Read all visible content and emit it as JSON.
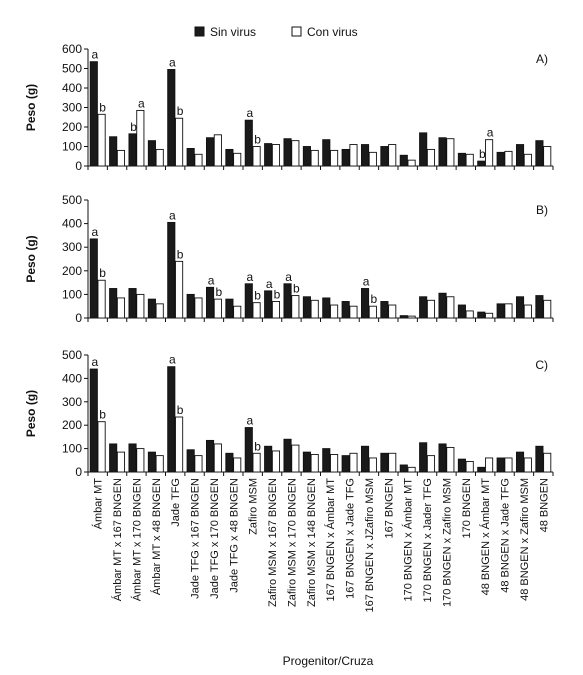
{
  "legend": [
    {
      "label": "Sin virus",
      "color": "#1a1a1a"
    },
    {
      "label": "Con virus",
      "color": "#ffffff"
    }
  ],
  "xlabel": "Progenitor/Cruza",
  "categories": [
    "Ámbar MT",
    "Ámbar MT x 167 BNGEN",
    "Ámbar MT x 170 BNGEN",
    "Ámbar MT x 48 BNGEN",
    "Jade TFG",
    "Jade TFG x 167 BNGEN",
    "Jade TFG x 170 BNGEN",
    "Jade TFG x 48 BNGEN",
    "Zafiro MSM",
    "Zafiro MSM x 167 BNGEN",
    "Zafiro MSM x 170 BNGEN",
    "Zafiro MSM x 148 BNGEN",
    "167 BNGEN x Ámbar MT",
    "167 BNGEN x Jade TFG",
    "167 BNGEN x JZafiro MSM",
    "167 BNGEN",
    "170 BNGEN x Ámbar MT",
    "170 BNGEN x Jader TFG",
    "170 BNGEN x Zafiro MSM",
    "170 BNGEN",
    "48 BNGEN x Ámbar MT",
    "48 BNGEN x Jade TFG",
    "48 BNGEN x Zafiro MSM",
    "48 BNGEN"
  ],
  "chart_data": [
    {
      "type": "bar",
      "panel_label": "A)",
      "ylabel": "Peso (g)",
      "ylim": [
        0,
        600
      ],
      "yticks": [
        0,
        100,
        200,
        300,
        400,
        500,
        600
      ],
      "series": [
        {
          "name": "Sin virus",
          "values": [
            535,
            150,
            165,
            130,
            495,
            90,
            145,
            85,
            235,
            115,
            140,
            100,
            135,
            85,
            110,
            100,
            55,
            170,
            145,
            65,
            25,
            70,
            110,
            130
          ]
        },
        {
          "name": "Con virus",
          "values": [
            265,
            80,
            285,
            85,
            245,
            60,
            160,
            65,
            100,
            110,
            130,
            80,
            80,
            110,
            70,
            110,
            30,
            85,
            140,
            60,
            135,
            75,
            60,
            100
          ]
        }
      ],
      "annotations": [
        {
          "category": 0,
          "series": 0,
          "text": "a"
        },
        {
          "category": 0,
          "series": 1,
          "text": "b"
        },
        {
          "category": 2,
          "series": 0,
          "text": "b"
        },
        {
          "category": 2,
          "series": 1,
          "text": "a"
        },
        {
          "category": 4,
          "series": 0,
          "text": "a"
        },
        {
          "category": 4,
          "series": 1,
          "text": "b"
        },
        {
          "category": 8,
          "series": 0,
          "text": "a"
        },
        {
          "category": 8,
          "series": 1,
          "text": "b"
        },
        {
          "category": 20,
          "series": 0,
          "text": "b"
        },
        {
          "category": 20,
          "series": 1,
          "text": "a"
        }
      ]
    },
    {
      "type": "bar",
      "panel_label": "B)",
      "ylabel": "Peso (g)",
      "ylim": [
        0,
        500
      ],
      "yticks": [
        0,
        100,
        200,
        300,
        400,
        500
      ],
      "series": [
        {
          "name": "Sin virus",
          "values": [
            335,
            125,
            125,
            80,
            405,
            100,
            130,
            80,
            145,
            115,
            145,
            90,
            85,
            70,
            125,
            70,
            10,
            90,
            105,
            55,
            25,
            60,
            90,
            95
          ]
        },
        {
          "name": "Con virus",
          "values": [
            160,
            85,
            100,
            60,
            240,
            85,
            80,
            50,
            65,
            70,
            95,
            75,
            55,
            50,
            50,
            55,
            8,
            75,
            90,
            30,
            20,
            60,
            55,
            75
          ]
        }
      ],
      "annotations": [
        {
          "category": 0,
          "series": 0,
          "text": "a"
        },
        {
          "category": 0,
          "series": 1,
          "text": "b"
        },
        {
          "category": 4,
          "series": 0,
          "text": "a"
        },
        {
          "category": 4,
          "series": 1,
          "text": "b"
        },
        {
          "category": 6,
          "series": 0,
          "text": "a"
        },
        {
          "category": 6,
          "series": 1,
          "text": "b"
        },
        {
          "category": 8,
          "series": 0,
          "text": "a"
        },
        {
          "category": 8,
          "series": 1,
          "text": "b"
        },
        {
          "category": 9,
          "series": 0,
          "text": "a"
        },
        {
          "category": 9,
          "series": 1,
          "text": "b"
        },
        {
          "category": 10,
          "series": 0,
          "text": "a"
        },
        {
          "category": 10,
          "series": 1,
          "text": "b"
        },
        {
          "category": 14,
          "series": 0,
          "text": "a"
        },
        {
          "category": 14,
          "series": 1,
          "text": "b"
        }
      ]
    },
    {
      "type": "bar",
      "panel_label": "C)",
      "ylabel": "Peso (g)",
      "ylim": [
        0,
        500
      ],
      "yticks": [
        0,
        100,
        200,
        300,
        400,
        500
      ],
      "series": [
        {
          "name": "Sin virus",
          "values": [
            440,
            120,
            120,
            85,
            450,
            95,
            135,
            80,
            190,
            110,
            140,
            85,
            100,
            70,
            110,
            80,
            30,
            125,
            120,
            55,
            20,
            60,
            85,
            110
          ]
        },
        {
          "name": "Con virus",
          "values": [
            215,
            85,
            100,
            70,
            235,
            70,
            120,
            60,
            80,
            90,
            115,
            75,
            75,
            80,
            60,
            80,
            20,
            70,
            105,
            45,
            60,
            60,
            60,
            80
          ]
        }
      ],
      "annotations": [
        {
          "category": 0,
          "series": 0,
          "text": "a"
        },
        {
          "category": 0,
          "series": 1,
          "text": "b"
        },
        {
          "category": 4,
          "series": 0,
          "text": "a"
        },
        {
          "category": 4,
          "series": 1,
          "text": "b"
        },
        {
          "category": 8,
          "series": 0,
          "text": "a"
        },
        {
          "category": 8,
          "series": 1,
          "text": "b"
        }
      ]
    }
  ]
}
